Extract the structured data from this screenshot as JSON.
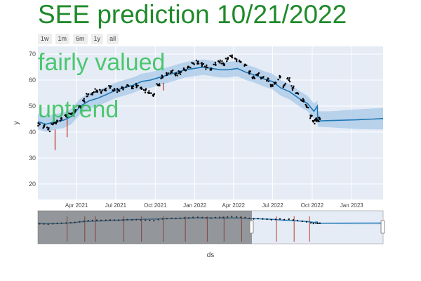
{
  "title": "SEE prediction 10/21/2022",
  "range_selector": [
    "1w",
    "1m",
    "6m",
    "1y",
    "all"
  ],
  "annotations": [
    "fairly valued",
    "uptrend"
  ],
  "colors": {
    "title": "#1f8a2a",
    "annotation": "#28be50",
    "plot_bg": "#e5ecf6",
    "forecast_line": "#1f77b4",
    "forecast_band": "#a9c9e8",
    "actual_points": "#000000",
    "changepoints": "#c0392b"
  },
  "chart_data": {
    "type": "line",
    "title": "SEE prediction 10/21/2022",
    "xlabel": "ds",
    "ylabel": "y",
    "x_range": [
      "2021-01-01",
      "2023-03-15"
    ],
    "y_range": [
      14,
      73
    ],
    "grid": true,
    "y_ticks": [
      20,
      30,
      40,
      50,
      60,
      70
    ],
    "x_ticks": [
      {
        "date": "2021-04-01",
        "label": "Apr 2021"
      },
      {
        "date": "2021-07-01",
        "label": "Jul 2021"
      },
      {
        "date": "2021-10-01",
        "label": "Oct 2021"
      },
      {
        "date": "2022-01-01",
        "label": "Jan 2022"
      },
      {
        "date": "2022-04-01",
        "label": "Apr 2022"
      },
      {
        "date": "2022-07-01",
        "label": "Jul 2022"
      },
      {
        "date": "2022-10-01",
        "label": "Oct 2022"
      },
      {
        "date": "2023-01-01",
        "label": "Jan 2023"
      }
    ],
    "forecast": {
      "dates": [
        "2021-01-01",
        "2021-01-20",
        "2021-02-10",
        "2021-03-01",
        "2021-03-20",
        "2021-04-10",
        "2021-04-30",
        "2021-05-20",
        "2021-06-10",
        "2021-06-30",
        "2021-07-20",
        "2021-08-10",
        "2021-08-31",
        "2021-09-20",
        "2021-10-10",
        "2021-10-31",
        "2021-11-20",
        "2021-12-10",
        "2021-12-31",
        "2022-01-20",
        "2022-02-10",
        "2022-03-01",
        "2022-03-20",
        "2022-04-10",
        "2022-04-30",
        "2022-05-20",
        "2022-06-10",
        "2022-06-30",
        "2022-07-20",
        "2022-08-10",
        "2022-08-31",
        "2022-09-20",
        "2022-10-05",
        "2022-10-13",
        "2022-10-14",
        "2022-10-21",
        "2022-11-10",
        "2022-12-01",
        "2022-12-20",
        "2023-01-10",
        "2023-02-01",
        "2023-02-20",
        "2023-03-15"
      ],
      "yhat": [
        44,
        43,
        44,
        44.5,
        46,
        50,
        52,
        53,
        54.5,
        56,
        57,
        58,
        59.5,
        60,
        61,
        62,
        63,
        64,
        64.5,
        65,
        64.5,
        64,
        64,
        64.5,
        63,
        62,
        60.5,
        59.5,
        57,
        55.5,
        53,
        51,
        48,
        50,
        44,
        44.3,
        44.4,
        44.5,
        44.6,
        44.7,
        44.9,
        45,
        45.2
      ],
      "lower": [
        41,
        40,
        41,
        41.5,
        43,
        47,
        49,
        50,
        51.5,
        53,
        54,
        55,
        56.5,
        57,
        58,
        59,
        60,
        61,
        61.5,
        62,
        61.5,
        61,
        61,
        61.5,
        60,
        59,
        57.5,
        56.5,
        54,
        52.5,
        50,
        48,
        45,
        45,
        42,
        42,
        41.8,
        41.6,
        41.4,
        41.2,
        41.1,
        41,
        41
      ],
      "upper": [
        47,
        46,
        47,
        47.5,
        49,
        53,
        55,
        56,
        57.5,
        59,
        60,
        61,
        62.5,
        63,
        64,
        65,
        66,
        67,
        67.5,
        68,
        67.5,
        67,
        67,
        67.5,
        66,
        65,
        63.5,
        62.5,
        60,
        58.5,
        56,
        54,
        51,
        52,
        48,
        48,
        48,
        48.2,
        48.5,
        48.7,
        48.9,
        49.1,
        49.3
      ]
    },
    "actual": {
      "dates": [
        "2021-01-05",
        "2021-01-15",
        "2021-01-25",
        "2021-02-05",
        "2021-02-15",
        "2021-02-25",
        "2021-03-08",
        "2021-03-18",
        "2021-03-28",
        "2021-04-08",
        "2021-04-18",
        "2021-04-28",
        "2021-05-08",
        "2021-05-18",
        "2021-05-28",
        "2021-06-08",
        "2021-06-18",
        "2021-06-28",
        "2021-07-08",
        "2021-07-18",
        "2021-07-28",
        "2021-08-08",
        "2021-08-18",
        "2021-08-28",
        "2021-09-08",
        "2021-09-18",
        "2021-09-28",
        "2021-10-08",
        "2021-10-18",
        "2021-10-28",
        "2021-11-08",
        "2021-11-18",
        "2021-11-28",
        "2021-12-08",
        "2021-12-18",
        "2021-12-28",
        "2022-01-08",
        "2022-01-18",
        "2022-01-28",
        "2022-02-08",
        "2022-02-18",
        "2022-02-28",
        "2022-03-08",
        "2022-03-18",
        "2022-03-28",
        "2022-04-08",
        "2022-04-18",
        "2022-04-28",
        "2022-05-08",
        "2022-05-18",
        "2022-05-28",
        "2022-06-08",
        "2022-06-18",
        "2022-06-28",
        "2022-07-08",
        "2022-07-18",
        "2022-07-28",
        "2022-08-08",
        "2022-08-18",
        "2022-08-28",
        "2022-09-08",
        "2022-09-18",
        "2022-09-28",
        "2022-10-04",
        "2022-10-10",
        "2022-10-14",
        "2022-10-19"
      ],
      "values": [
        43,
        42,
        41,
        43,
        44,
        45,
        46,
        47,
        48,
        50,
        52,
        54.5,
        55,
        56,
        55.5,
        56,
        57,
        56.5,
        56,
        57,
        58,
        57.5,
        58,
        57,
        56,
        55,
        54.5,
        58,
        61,
        62,
        63,
        62.5,
        63,
        64,
        65,
        66.5,
        67,
        66,
        65,
        64,
        66,
        67,
        66.5,
        68,
        69,
        68,
        67,
        66,
        63,
        61,
        62,
        61,
        60,
        58,
        59,
        61,
        58,
        60,
        57,
        55,
        52,
        50,
        46,
        44,
        45,
        44.5,
        45
      ]
    },
    "changepoints": [
      {
        "date": "2021-02-10",
        "low": 33,
        "high": 41
      },
      {
        "date": "2021-03-10",
        "low": 38,
        "high": 46
      },
      {
        "date": "2021-10-20",
        "low": 56,
        "high": 59
      }
    ]
  }
}
